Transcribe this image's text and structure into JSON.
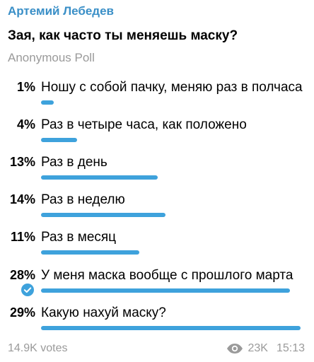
{
  "author": "Артемий Лебедев",
  "question": "Зая, как часто ты меняешь маску?",
  "poll_type": "Anonymous Poll",
  "options": [
    {
      "percent_label": "1%",
      "value": 1,
      "text": "Ношу с собой пачку, меняю раз в полчаса",
      "bar_fraction": 0.05,
      "chosen": false
    },
    {
      "percent_label": "4%",
      "value": 4,
      "text": "Раз в четыре часа, как положено",
      "bar_fraction": 0.14,
      "chosen": false
    },
    {
      "percent_label": "13%",
      "value": 13,
      "text": "Раз в день",
      "bar_fraction": 0.45,
      "chosen": false
    },
    {
      "percent_label": "14%",
      "value": 14,
      "text": "Раз в неделю",
      "bar_fraction": 0.48,
      "chosen": false
    },
    {
      "percent_label": "11%",
      "value": 11,
      "text": "Раз в месяц",
      "bar_fraction": 0.38,
      "chosen": false
    },
    {
      "percent_label": "28%",
      "value": 28,
      "text": "У меня маска вообще с прошлого марта",
      "bar_fraction": 0.96,
      "chosen": true
    },
    {
      "percent_label": "29%",
      "value": 29,
      "text": "Какую нахуй маску?",
      "bar_fraction": 1.0,
      "chosen": false
    }
  ],
  "footer": {
    "votes": "14.9K votes",
    "views": "23K",
    "time": "15:13",
    "views_icon": "eye-icon"
  },
  "colors": {
    "author": "#3a8fc7",
    "bar": "#3ea2dc",
    "muted": "#9a9a9a"
  }
}
